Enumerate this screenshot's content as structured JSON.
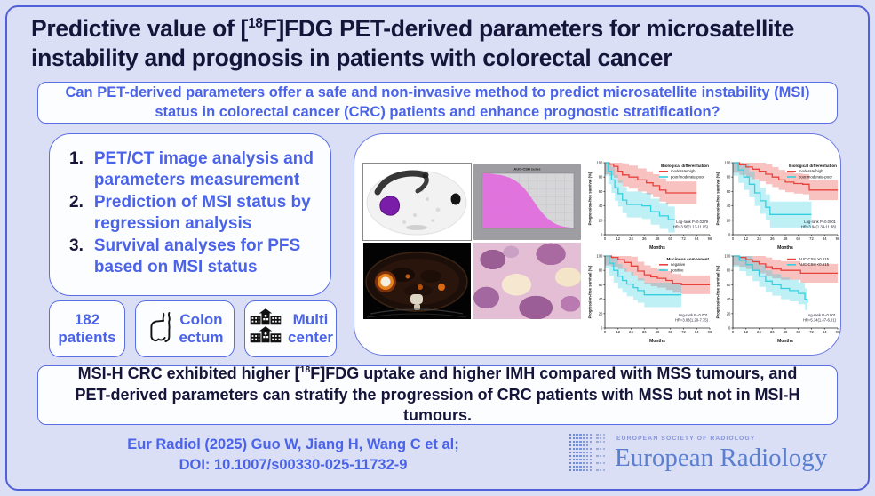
{
  "header": {
    "title_segments": [
      {
        "text": "Predictive value of ["
      },
      {
        "text": "18",
        "sup": true
      },
      {
        "text": "F]FDG PET-derived parameters for microsatellite instability and prognosis in patients with colorectal cancer"
      }
    ]
  },
  "question": {
    "text": "Can PET-derived parameters offer a safe and non-invasive method to predict microsatellite instability (MSI) status in colorectal cancer (CRC) patients and enhance prognostic stratification?"
  },
  "methods": {
    "steps": [
      "PET/CT image analysis and parameters measurement",
      "Prediction of MSI status by regression analysis",
      "Survival analyses for PFS based on MSI status"
    ]
  },
  "stats": [
    {
      "id": "patients",
      "icon": null,
      "lines": [
        "182",
        "patients"
      ]
    },
    {
      "id": "site",
      "icon": "colon-icon",
      "lines": [
        "Colon",
        "ectum"
      ]
    },
    {
      "id": "centers",
      "icon": "hospital-icon",
      "lines": [
        "Multi",
        "center"
      ]
    }
  ],
  "conclusion": {
    "segments": [
      {
        "text": "MSI-H CRC exhibited higher ["
      },
      {
        "text": "18",
        "sup": true
      },
      {
        "text": "F]FDG uptake and higher IMH compared with MSS tumours, and PET-derived parameters can stratify the progression of CRC patients with MSS but not in MSI-H tumours."
      }
    ]
  },
  "footer": {
    "citation_lines": [
      "Eur Radiol (2025) Guo W, Jiang H, Wang C et al;",
      "DOI: 10.1007/s00330-025-11732-9"
    ],
    "logo": {
      "society": "EUROPEAN SOCIETY OF RADIOLOGY",
      "journal": "European Radiology"
    }
  },
  "colors": {
    "accent_blue": "#4a63e8",
    "navy": "#15153a",
    "border_blue": "#5b6ee2",
    "km_red": "#e8423d",
    "km_cyan": "#35d0e0",
    "csh_magenta": "#e26edd"
  },
  "chart_data": [
    {
      "type": "area",
      "id": "csh",
      "title": "AUC-CSH curve",
      "xlabel": "",
      "ylabel": "",
      "x": [
        0,
        5,
        10,
        15,
        20,
        25,
        30,
        35,
        40,
        45,
        50,
        55,
        60,
        65,
        70,
        75,
        80,
        85,
        90,
        95,
        100
      ],
      "y": [
        100,
        100,
        99,
        98,
        97,
        95,
        92,
        88,
        82,
        74,
        64,
        52,
        40,
        29,
        20,
        13,
        8,
        5,
        3,
        2,
        1
      ],
      "xlim": [
        0,
        100
      ],
      "ylim": [
        0,
        100
      ],
      "grid": true
    },
    {
      "type": "line",
      "subtype": "kaplan-meier",
      "id": "km1",
      "legend_title": "Biological differentiation",
      "ylabel": "Progression-free survival (%)",
      "xlabel": "Months",
      "xticks": [
        0,
        12,
        24,
        36,
        48,
        60,
        72,
        84,
        96
      ],
      "yticks": [
        0,
        20,
        40,
        60,
        80,
        100
      ],
      "annotation": [
        "Log-rank P=0.0279",
        "HR=3.56(1.13-11.05)"
      ],
      "series": [
        {
          "name": "moderate/high",
          "color": "#e8423d",
          "band": 16,
          "points": [
            [
              0,
              100
            ],
            [
              4,
              98
            ],
            [
              8,
              95
            ],
            [
              12,
              88
            ],
            [
              16,
              83
            ],
            [
              22,
              80
            ],
            [
              30,
              76
            ],
            [
              38,
              72
            ],
            [
              44,
              68
            ],
            [
              50,
              62
            ],
            [
              56,
              58
            ],
            [
              84,
              58
            ]
          ]
        },
        {
          "name": "poor/moderate-poor",
          "color": "#35d0e0",
          "band": 18,
          "points": [
            [
              0,
              100
            ],
            [
              3,
              88
            ],
            [
              6,
              76
            ],
            [
              9,
              65
            ],
            [
              12,
              57
            ],
            [
              16,
              48
            ],
            [
              20,
              42
            ],
            [
              34,
              40
            ],
            [
              42,
              32
            ],
            [
              50,
              26
            ],
            [
              58,
              21
            ],
            [
              64,
              21
            ]
          ]
        }
      ]
    },
    {
      "type": "line",
      "subtype": "kaplan-meier",
      "id": "km2",
      "legend_title": "Biological differentiation",
      "ylabel": "Progression-free survival (%)",
      "xlabel": "Months",
      "xticks": [
        0,
        12,
        24,
        36,
        48,
        60,
        72,
        84,
        96
      ],
      "yticks": [
        0,
        20,
        40,
        60,
        80,
        100
      ],
      "annotation": [
        "Log-rank P=0.0001",
        "HR=3.94(1.34-11.38)"
      ],
      "series": [
        {
          "name": "moderate/high",
          "color": "#e8423d",
          "band": 14,
          "points": [
            [
              0,
              100
            ],
            [
              6,
              97
            ],
            [
              12,
              94
            ],
            [
              18,
              91
            ],
            [
              24,
              88
            ],
            [
              30,
              84
            ],
            [
              36,
              80
            ],
            [
              42,
              76
            ],
            [
              48,
              73
            ],
            [
              56,
              71
            ],
            [
              64,
              70
            ],
            [
              70,
              62
            ],
            [
              96,
              62
            ]
          ]
        },
        {
          "name": "poor/moderate-poor",
          "color": "#35d0e0",
          "band": 18,
          "points": [
            [
              0,
              100
            ],
            [
              5,
              90
            ],
            [
              10,
              80
            ],
            [
              15,
              70
            ],
            [
              20,
              58
            ],
            [
              25,
              47
            ],
            [
              30,
              38
            ],
            [
              34,
              28
            ],
            [
              72,
              28
            ]
          ]
        }
      ]
    },
    {
      "type": "line",
      "subtype": "kaplan-meier",
      "id": "km3",
      "legend_title": "Mucinous component",
      "ylabel": "Progression-free survival (%)",
      "xlabel": "Months",
      "xticks": [
        0,
        12,
        24,
        36,
        48,
        60,
        72,
        84,
        96
      ],
      "yticks": [
        0,
        20,
        40,
        60,
        80,
        100
      ],
      "annotation": [
        "Log-rank P=0.001",
        "HR=3.03(1.20-7.75)"
      ],
      "series": [
        {
          "name": "negative",
          "color": "#e8423d",
          "band": 13,
          "points": [
            [
              0,
              100
            ],
            [
              6,
              98
            ],
            [
              12,
              95
            ],
            [
              18,
              91
            ],
            [
              24,
              86
            ],
            [
              30,
              79
            ],
            [
              36,
              74
            ],
            [
              42,
              71
            ],
            [
              48,
              69
            ],
            [
              56,
              66
            ],
            [
              62,
              62
            ],
            [
              70,
              60
            ],
            [
              96,
              60
            ]
          ]
        },
        {
          "name": "positive",
          "color": "#35d0e0",
          "band": 17,
          "points": [
            [
              0,
              100
            ],
            [
              4,
              90
            ],
            [
              8,
              80
            ],
            [
              12,
              72
            ],
            [
              16,
              66
            ],
            [
              20,
              61
            ],
            [
              26,
              56
            ],
            [
              30,
              52
            ],
            [
              36,
              46
            ],
            [
              70,
              46
            ]
          ]
        }
      ]
    },
    {
      "type": "line",
      "subtype": "kaplan-meier",
      "id": "km4",
      "legend_title": "",
      "ylabel": "Progression-free survival (%)",
      "xlabel": "Months",
      "xticks": [
        0,
        12,
        24,
        36,
        48,
        60,
        72,
        84,
        96
      ],
      "yticks": [
        0,
        20,
        40,
        60,
        80,
        100
      ],
      "annotation": [
        "Log-rank P=0.001",
        "HR=5.34(1.47-6.01)"
      ],
      "series": [
        {
          "name": "AUC-CSH >0.615",
          "color": "#e8423d",
          "band": 13,
          "points": [
            [
              0,
              100
            ],
            [
              6,
              98
            ],
            [
              12,
              95
            ],
            [
              18,
              92
            ],
            [
              24,
              89
            ],
            [
              30,
              85
            ],
            [
              36,
              82
            ],
            [
              44,
              80
            ],
            [
              56,
              80
            ],
            [
              62,
              76
            ],
            [
              96,
              76
            ]
          ]
        },
        {
          "name": "AUC-CSH <0.615",
          "color": "#35d0e0",
          "band": 15,
          "points": [
            [
              0,
              100
            ],
            [
              6,
              94
            ],
            [
              12,
              88
            ],
            [
              18,
              80
            ],
            [
              24,
              72
            ],
            [
              30,
              65
            ],
            [
              36,
              60
            ],
            [
              44,
              55
            ],
            [
              52,
              52
            ],
            [
              60,
              48
            ],
            [
              66,
              40
            ],
            [
              68,
              35
            ]
          ]
        }
      ]
    }
  ]
}
